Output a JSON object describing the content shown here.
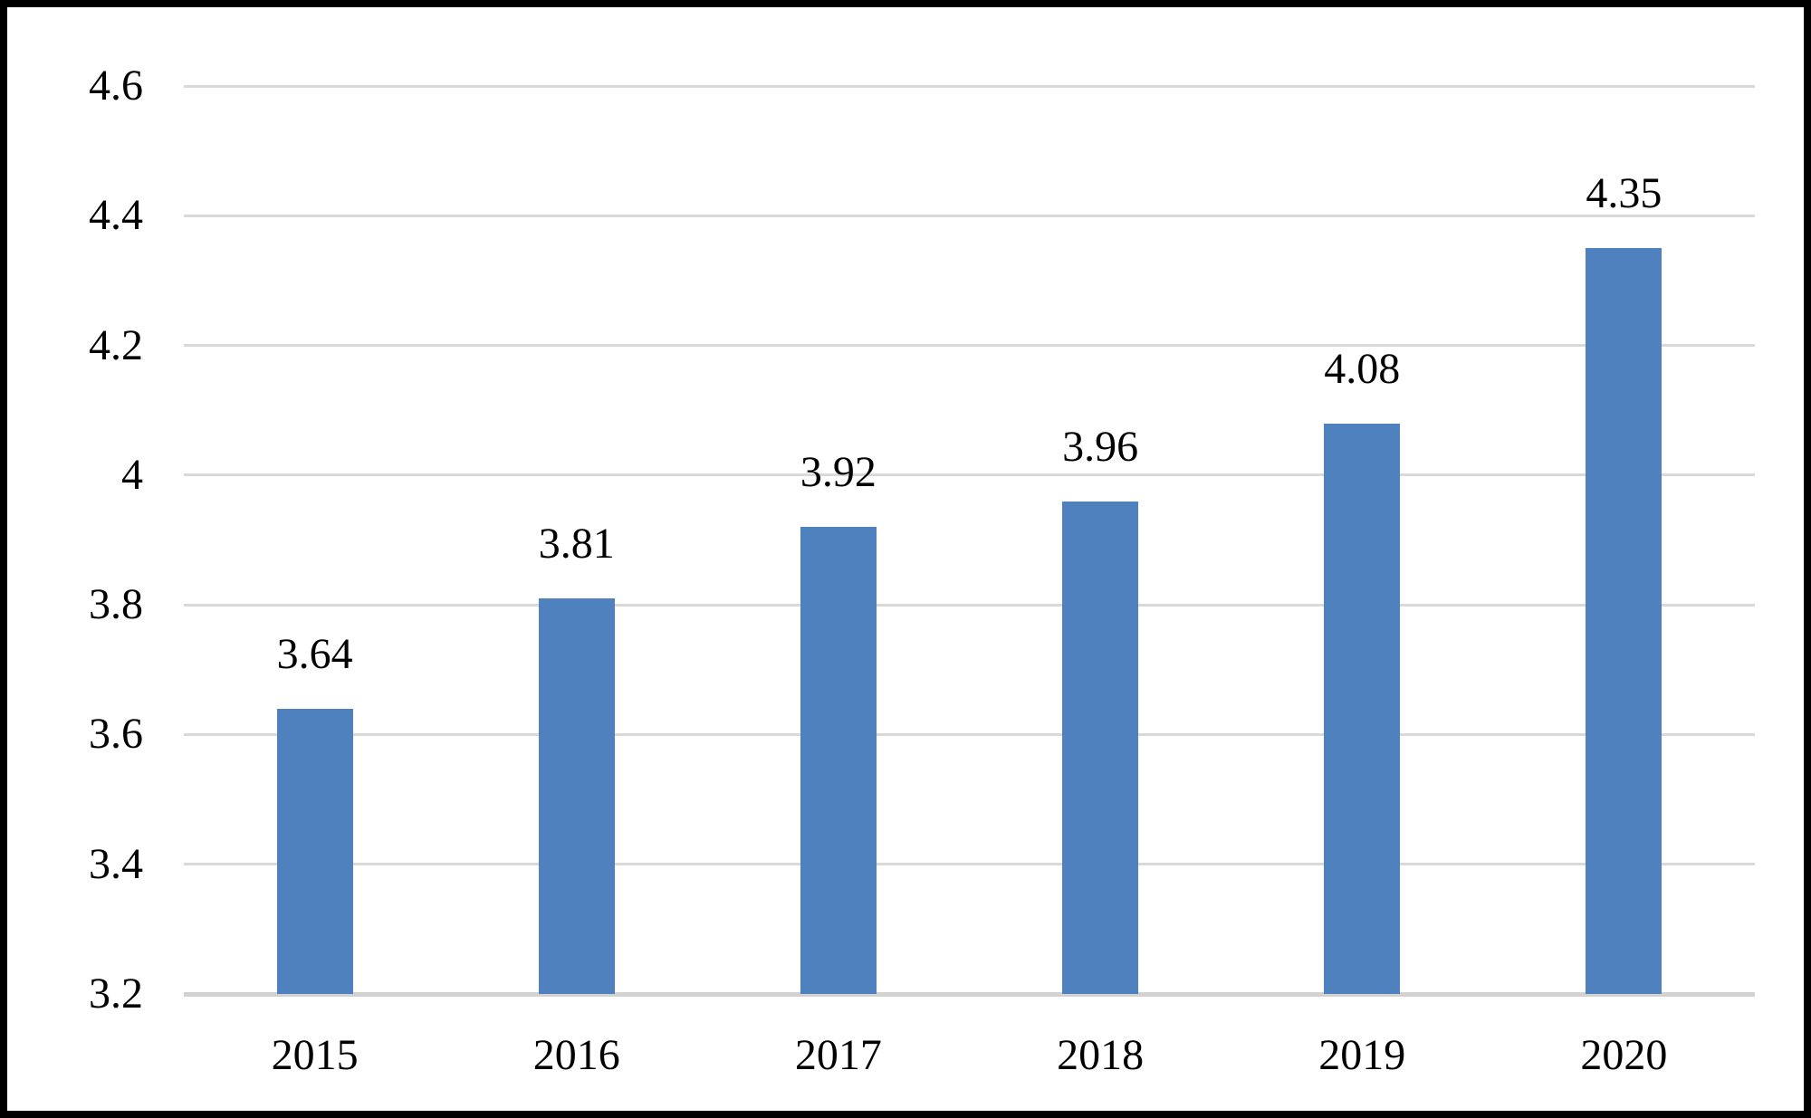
{
  "chart_data": {
    "type": "bar",
    "categories": [
      "2015",
      "2016",
      "2017",
      "2018",
      "2019",
      "2020"
    ],
    "values": [
      3.64,
      3.81,
      3.92,
      3.96,
      4.08,
      4.35
    ],
    "data_labels": [
      "3.64",
      "3.81",
      "3.92",
      "3.96",
      "4.08",
      "4.35"
    ],
    "title": "",
    "xlabel": "",
    "ylabel": "",
    "ylim": [
      3.2,
      4.6
    ],
    "ytick_step": 0.2,
    "yticks": [
      3.2,
      3.4,
      3.6,
      3.8,
      4.0,
      4.2,
      4.4,
      4.6
    ],
    "ytick_labels": [
      "3.2",
      "3.4",
      "3.6",
      "3.8",
      "4",
      "4.2",
      "4.4",
      "4.6"
    ],
    "grid": true,
    "legend": "none",
    "colors": {
      "bar": "#4E81BD",
      "gridline": "#D9D9D9",
      "axis_line": "#D2D2D2",
      "text": "#000000",
      "frame_border": "#000000",
      "background": "#FFFFFF"
    }
  }
}
